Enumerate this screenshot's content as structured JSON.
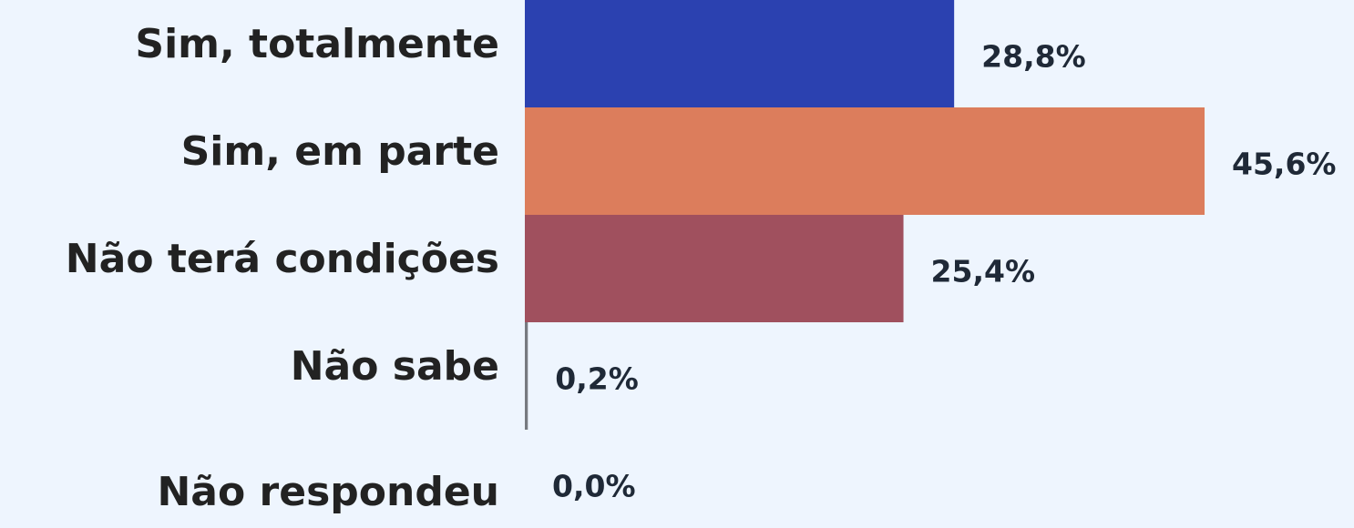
{
  "chart_data": {
    "type": "bar",
    "orientation": "horizontal",
    "categories": [
      "Sim, totalmente",
      "Sim, em parte ",
      "Não terá condições",
      "Não sabe",
      "Não respondeu"
    ],
    "values": [
      28.8,
      45.6,
      25.4,
      0.2,
      0.0
    ],
    "value_labels": [
      "28,8%",
      "45,6%",
      "25,4%",
      "0,2%",
      "0,0%"
    ],
    "colors": [
      "#2b41b0",
      "#dc7d5c",
      "#a0505e",
      "#777a80",
      "#777a80"
    ]
  }
}
